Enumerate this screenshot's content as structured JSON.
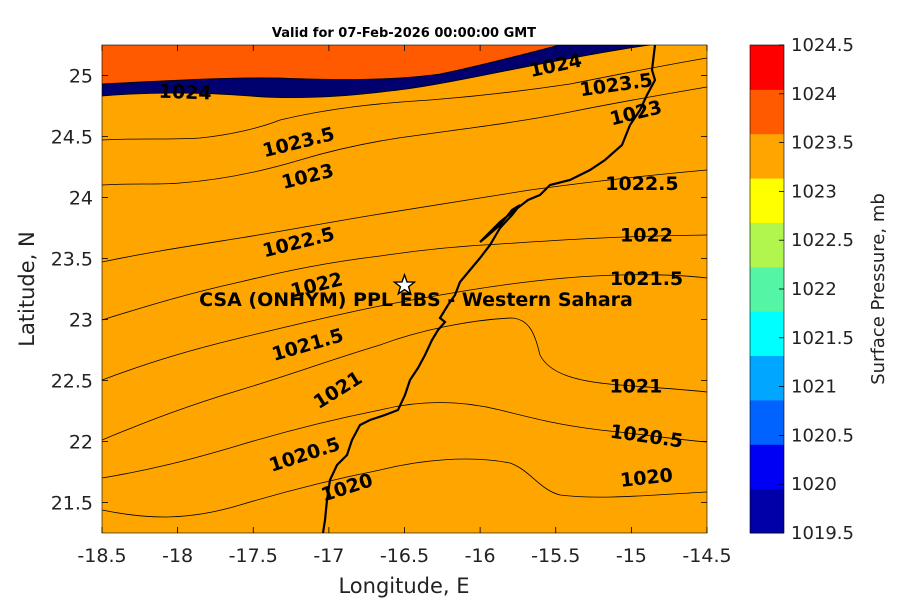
{
  "title": "Valid for 07-Feb-2026 00:00:00 GMT",
  "x_axis": {
    "label": "Longitude, E",
    "ticks": [
      "-18.5",
      "-18",
      "-17.5",
      "-17",
      "-16.5",
      "-16",
      "-15.5",
      "-15",
      "-14.5"
    ]
  },
  "y_axis": {
    "label": "Latitude, N",
    "ticks": [
      "21.5",
      "22",
      "22.5",
      "23",
      "23.5",
      "24",
      "24.5",
      "25"
    ]
  },
  "site": {
    "name": "CSA (ONHYM) PPL EBS - Western Sahara",
    "lon": -16.5,
    "lat": 23.28,
    "marker": "star-icon"
  },
  "contour_labels": [
    {
      "text": "1024",
      "lon": -17.95,
      "lat": 24.86,
      "angle": 2
    },
    {
      "text": "1024",
      "lon": -15.5,
      "lat": 25.08,
      "angle": -12
    },
    {
      "text": "1023.5",
      "lon": -17.2,
      "lat": 24.45,
      "angle": -14
    },
    {
      "text": "1023.5",
      "lon": -15.1,
      "lat": 24.92,
      "angle": -8
    },
    {
      "text": "1023",
      "lon": -17.14,
      "lat": 24.17,
      "angle": -14
    },
    {
      "text": "1023",
      "lon": -14.97,
      "lat": 24.69,
      "angle": -14
    },
    {
      "text": "1022.5",
      "lon": -17.2,
      "lat": 23.63,
      "angle": -14
    },
    {
      "text": "1022.5",
      "lon": -14.93,
      "lat": 24.11,
      "angle": 0
    },
    {
      "text": "1022",
      "lon": -17.08,
      "lat": 23.28,
      "angle": -14
    },
    {
      "text": "1022",
      "lon": -14.9,
      "lat": 23.69,
      "angle": 0
    },
    {
      "text": "1021.5",
      "lon": -17.14,
      "lat": 22.79,
      "angle": -16
    },
    {
      "text": "1021.5",
      "lon": -14.9,
      "lat": 23.33,
      "angle": 0
    },
    {
      "text": "1021",
      "lon": -16.94,
      "lat": 22.42,
      "angle": -32
    },
    {
      "text": "1021",
      "lon": -14.97,
      "lat": 22.45,
      "angle": 0
    },
    {
      "text": "1020.5",
      "lon": -17.16,
      "lat": 21.89,
      "angle": -18
    },
    {
      "text": "1020.5",
      "lon": -14.9,
      "lat": 22.04,
      "angle": 8
    },
    {
      "text": "1020",
      "lon": -16.88,
      "lat": 21.62,
      "angle": -18
    },
    {
      "text": "1020",
      "lon": -14.9,
      "lat": 21.7,
      "angle": -6
    }
  ],
  "colorbar": {
    "label": "Surface Pressure, mb",
    "ticks": [
      "1019.5",
      "1020",
      "1020.5",
      "1021",
      "1021.5",
      "1022",
      "1022.5",
      "1023",
      "1023.5",
      "1024",
      "1024.5"
    ],
    "colors": [
      "#0000a8",
      "#0000f5",
      "#0062ff",
      "#00a6ff",
      "#00ffff",
      "#55f5a6",
      "#b1f54f",
      "#ffff00",
      "#ffa500",
      "#ff5a00",
      "#ff0000"
    ]
  },
  "chart_data": {
    "type": "heatmap",
    "title": "Valid for 07-Feb-2026 00:00:00 GMT",
    "xlabel": "Longitude, E",
    "ylabel": "Latitude, N",
    "xlim": [
      -18.5,
      -14.5
    ],
    "ylim": [
      21.25,
      25.25
    ],
    "colorbar_range": [
      1019.5,
      1024.5
    ],
    "contour_levels": [
      1020,
      1020.5,
      1021,
      1021.5,
      1022,
      1022.5,
      1023,
      1023.5,
      1024
    ],
    "legend": "colorbar-right"
  }
}
